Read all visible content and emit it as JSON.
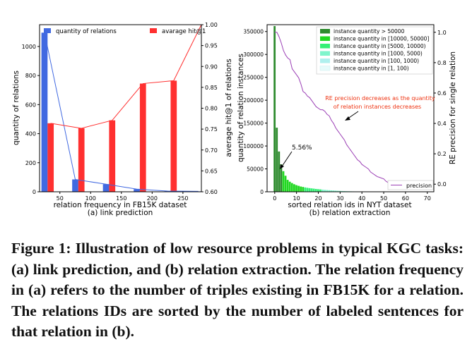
{
  "colors": {
    "blue": "#4169e1",
    "red": "#ff3030",
    "purple": "#9b3fb5",
    "arrow_text": "#ee3311"
  },
  "caption": {
    "text": "Figure 1: Illustration of low resource problems in typical KGC tasks: (a) link prediction, and (b) relation extraction. The relation frequency in (a) refers to the number of triples existing in FB15K for a relation. The relations IDs are sorted by the number of labeled sentences for that relation in (b)."
  },
  "chart_data": [
    {
      "type": "bar",
      "caption": "(a) link prediction",
      "xlabel": "relation frequency in FB15K dataset",
      "ylabel": "quantity of relations",
      "y2label": "average hit@1 of relations",
      "categories": [
        "50",
        "100",
        "150",
        "200",
        "250"
      ],
      "category_x": [
        50,
        100,
        150,
        200,
        250
      ],
      "xlim": [
        17,
        280
      ],
      "ylim": [
        0,
        1150
      ],
      "y2lim": [
        0.6,
        1.0
      ],
      "yticks": [
        0,
        200,
        400,
        600,
        800,
        1000
      ],
      "y2ticks": [
        0.6,
        0.65,
        0.7,
        0.75,
        0.8,
        0.85,
        0.9,
        0.95,
        1.0
      ],
      "legend_placement": "top",
      "series": [
        {
          "name": "quantity of relations",
          "axis": "left",
          "x": [
            25,
            75,
            125,
            175,
            225,
            275
          ],
          "values": [
            1095,
            85,
            52,
            18,
            5,
            3
          ],
          "line": [
            1095,
            85,
            52,
            18,
            5,
            3
          ]
        },
        {
          "name": "avarage hit@1",
          "axis": "right",
          "x": [
            35,
            85,
            135,
            185,
            235,
            285
          ],
          "values": [
            0.764,
            0.752,
            0.771,
            0.859,
            0.866,
            1.0
          ],
          "line": [
            0.764,
            0.752,
            0.771,
            0.859,
            0.866,
            1.0
          ]
        }
      ]
    },
    {
      "type": "bar",
      "caption": "(b) relation extraction",
      "xlabel": "sorted relation ids in NYT dataset",
      "ylabel": "quantity of relation instances",
      "y2label": "RE precision for single relation",
      "xlim": [
        -3.5,
        73
      ],
      "ylim": [
        0,
        365000
      ],
      "y2lim": [
        -0.05,
        1.05
      ],
      "xticks": [
        0,
        10,
        20,
        30,
        40,
        50,
        60,
        70
      ],
      "yticks": [
        0,
        50000,
        100000,
        150000,
        200000,
        250000,
        300000,
        350000
      ],
      "y2ticks": [
        0.0,
        0.2,
        0.4,
        0.6,
        0.8,
        1.0
      ],
      "legend_placement": "top-right",
      "legend": [
        {
          "name": "instance quantity > 50000",
          "color": "#2e8b2e"
        },
        {
          "name": "instance quantity in [10000, 50000]",
          "color": "#22d822"
        },
        {
          "name": "instance quantity in [5000, 10000)",
          "color": "#35f075"
        },
        {
          "name": "instance quantity in [1000, 5000)",
          "color": "#7ff5cc"
        },
        {
          "name": "instance quantity in [100, 1000)",
          "color": "#b0f0ee"
        },
        {
          "name": "instance quantity in [1, 100)",
          "color": "#e6fbfb"
        }
      ],
      "bars": [
        {
          "x": 0,
          "y": 362000
        },
        {
          "x": 1,
          "y": 140000
        },
        {
          "x": 2,
          "y": 88000
        },
        {
          "x": 3,
          "y": 60000
        },
        {
          "x": 4,
          "y": 45000
        },
        {
          "x": 5,
          "y": 35000
        },
        {
          "x": 6,
          "y": 26000
        },
        {
          "x": 7,
          "y": 22000
        },
        {
          "x": 8,
          "y": 19000
        },
        {
          "x": 9,
          "y": 16500
        },
        {
          "x": 10,
          "y": 14500
        },
        {
          "x": 11,
          "y": 13000
        },
        {
          "x": 12,
          "y": 11500
        },
        {
          "x": 13,
          "y": 10500
        },
        {
          "x": 14,
          "y": 9500
        },
        {
          "x": 15,
          "y": 8700
        },
        {
          "x": 16,
          "y": 8000
        },
        {
          "x": 17,
          "y": 7400
        },
        {
          "x": 18,
          "y": 6800
        },
        {
          "x": 19,
          "y": 6200
        },
        {
          "x": 20,
          "y": 5700
        },
        {
          "x": 21,
          "y": 5200
        },
        {
          "x": 22,
          "y": 4800
        },
        {
          "x": 23,
          "y": 4300
        },
        {
          "x": 24,
          "y": 3900
        },
        {
          "x": 25,
          "y": 3500
        },
        {
          "x": 26,
          "y": 3100
        },
        {
          "x": 27,
          "y": 2800
        },
        {
          "x": 28,
          "y": 2500
        },
        {
          "x": 29,
          "y": 2200
        },
        {
          "x": 30,
          "y": 1900
        },
        {
          "x": 31,
          "y": 1700
        },
        {
          "x": 32,
          "y": 1500
        },
        {
          "x": 33,
          "y": 1300
        },
        {
          "x": 34,
          "y": 1150
        },
        {
          "x": 35,
          "y": 1000
        },
        {
          "x": 36,
          "y": 900
        },
        {
          "x": 37,
          "y": 800
        },
        {
          "x": 38,
          "y": 700
        },
        {
          "x": 39,
          "y": 600
        },
        {
          "x": 40,
          "y": 520
        },
        {
          "x": 41,
          "y": 450
        },
        {
          "x": 42,
          "y": 390
        },
        {
          "x": 43,
          "y": 330
        },
        {
          "x": 44,
          "y": 280
        },
        {
          "x": 45,
          "y": 230
        },
        {
          "x": 46,
          "y": 190
        },
        {
          "x": 47,
          "y": 160
        },
        {
          "x": 48,
          "y": 130
        },
        {
          "x": 49,
          "y": 100
        },
        {
          "x": 50,
          "y": 85
        },
        {
          "x": 51,
          "y": 70
        },
        {
          "x": 52,
          "y": 55
        },
        {
          "x": 53,
          "y": 40
        },
        {
          "x": 54,
          "y": 30
        }
      ],
      "precision_line": {
        "name": "precision",
        "x": [
          0,
          1,
          2,
          3,
          4,
          5,
          6,
          7,
          8,
          9,
          10,
          11,
          12,
          13,
          14,
          15,
          16,
          17,
          18,
          19,
          20,
          21,
          22,
          23,
          24,
          25,
          26,
          27,
          28,
          29,
          30,
          31,
          32,
          33,
          34,
          35,
          36,
          37,
          38,
          39,
          40,
          41,
          42,
          43,
          44,
          45,
          46,
          47,
          48,
          49,
          50,
          51,
          52,
          53,
          54
        ],
        "y": [
          1.0,
          1.0,
          0.97,
          0.93,
          0.88,
          0.85,
          0.83,
          0.82,
          0.76,
          0.74,
          0.72,
          0.7,
          0.66,
          0.61,
          0.6,
          0.58,
          0.57,
          0.55,
          0.53,
          0.51,
          0.5,
          0.49,
          0.49,
          0.48,
          0.46,
          0.45,
          0.42,
          0.4,
          0.37,
          0.35,
          0.33,
          0.31,
          0.29,
          0.26,
          0.24,
          0.22,
          0.2,
          0.18,
          0.16,
          0.15,
          0.13,
          0.12,
          0.11,
          0.1,
          0.08,
          0.07,
          0.06,
          0.05,
          0.045,
          0.04,
          0.035,
          0.02,
          0.01,
          0.005,
          0.005
        ]
      },
      "annotations": [
        {
          "text": "5.56%",
          "at_x": 1.5,
          "at_y": 0.18
        },
        {
          "text": "RE precision  decreases as the  quantity",
          "at_x": 21,
          "at_y": 0.41
        },
        {
          "text": "of relation instances decreases"
        }
      ]
    }
  ]
}
